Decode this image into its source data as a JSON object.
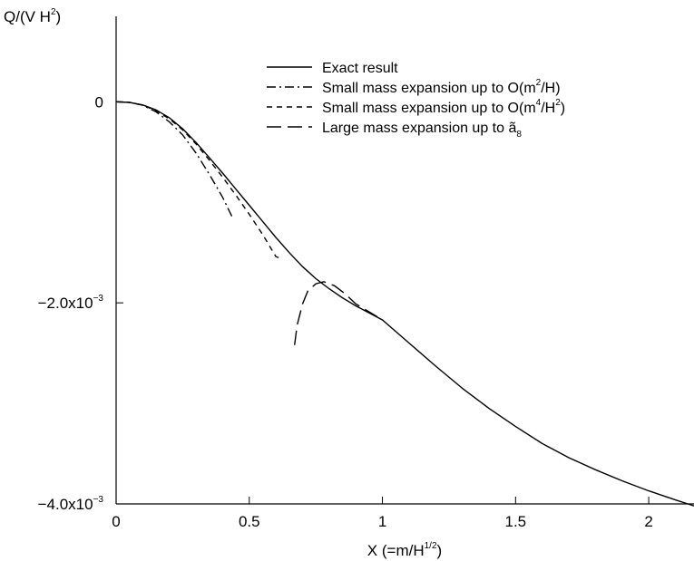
{
  "chart_data": {
    "type": "line",
    "title": "",
    "ylabel": {
      "base": "Q/(V H",
      "sup": "2",
      "tail": ")"
    },
    "xlabel": {
      "base": "X (=m/H",
      "sup": "1/2",
      "tail": ")"
    },
    "xlim": [
      0,
      2.17
    ],
    "ylim": [
      -0.004,
      0.00085
    ],
    "x_ticks": [
      {
        "value": 0,
        "label": "0"
      },
      {
        "value": 0.5,
        "label": "0.5"
      },
      {
        "value": 1,
        "label": "1"
      },
      {
        "value": 1.5,
        "label": "1.5"
      },
      {
        "value": 2,
        "label": "2"
      }
    ],
    "y_ticks": [
      {
        "value": 0,
        "label": "0",
        "sup": ""
      },
      {
        "value": -0.002,
        "label": "−2.0x10",
        "sup": "−3"
      },
      {
        "value": -0.004,
        "label": "−4.0x10",
        "sup": "−3"
      }
    ],
    "grid": false,
    "legend_position": "top-right",
    "series": [
      {
        "name": "Exact result",
        "dash": "none",
        "x": [
          0,
          0.05,
          0.1,
          0.15,
          0.2,
          0.25,
          0.3,
          0.35,
          0.4,
          0.45,
          0.5,
          0.55,
          0.6,
          0.65,
          0.7,
          0.75,
          0.8,
          0.85,
          0.9,
          0.95,
          1.0,
          1.1,
          1.2,
          1.3,
          1.4,
          1.5,
          1.6,
          1.7,
          1.8,
          1.9,
          2.0,
          2.1,
          2.17
        ],
        "y": [
          0,
          -6e-06,
          -3.2e-05,
          -8e-05,
          -0.00016,
          -0.00027,
          -0.000405,
          -0.000555,
          -0.00071,
          -0.00087,
          -0.00103,
          -0.00119,
          -0.00135,
          -0.0015,
          -0.00164,
          -0.00176,
          -0.00186,
          -0.00195,
          -0.00203,
          -0.0021,
          -0.00217,
          -0.0024,
          -0.00263,
          -0.00285,
          -0.00305,
          -0.00323,
          -0.0034,
          -0.00354,
          -0.00366,
          -0.00377,
          -0.00387,
          -0.00396,
          -0.00402
        ]
      },
      {
        "name": "Small mass expansion up to O(m²/H)",
        "legend": {
          "base": "Small mass expansion up to O(m",
          "sup": "2",
          "tail": "/H)"
        },
        "dash": "10,4,2,4",
        "x": [
          0,
          0.05,
          0.1,
          0.15,
          0.2,
          0.25,
          0.3,
          0.35,
          0.4,
          0.44
        ],
        "y": [
          0,
          -6e-06,
          -3.5e-05,
          -0.0001,
          -0.0002,
          -0.00033,
          -0.00051,
          -0.00072,
          -0.00095,
          -0.00117
        ]
      },
      {
        "name": "Small mass expansion up to O(m⁴/H²)",
        "legend": {
          "base": "Small mass expansion up to O(m",
          "sup": "4",
          "tail": "/H",
          "sup2": "2",
          "tail2": ")"
        },
        "dash": "6,5",
        "x": [
          0,
          0.05,
          0.1,
          0.15,
          0.2,
          0.25,
          0.3,
          0.35,
          0.4,
          0.45,
          0.5,
          0.55,
          0.6,
          0.62
        ],
        "y": [
          0,
          -6e-06,
          -3.3e-05,
          -9e-05,
          -0.00017,
          -0.00028,
          -0.00042,
          -0.00058,
          -0.00075,
          -0.00093,
          -0.00112,
          -0.00132,
          -0.00154,
          -0.00156
        ]
      },
      {
        "name": "Large mass expansion up to ã₈",
        "legend": {
          "base": "Large mass expansion up to ã",
          "sub": "8"
        },
        "dash": "16,7",
        "x": [
          0.67,
          0.68,
          0.7,
          0.72,
          0.75,
          0.78,
          0.82,
          0.86,
          0.9,
          0.95,
          1.0
        ],
        "y": [
          -0.00242,
          -0.00222,
          -0.00201,
          -0.00188,
          -0.00181,
          -0.00179,
          -0.00183,
          -0.00191,
          -0.00201,
          -0.00209,
          -0.00217
        ]
      }
    ]
  }
}
